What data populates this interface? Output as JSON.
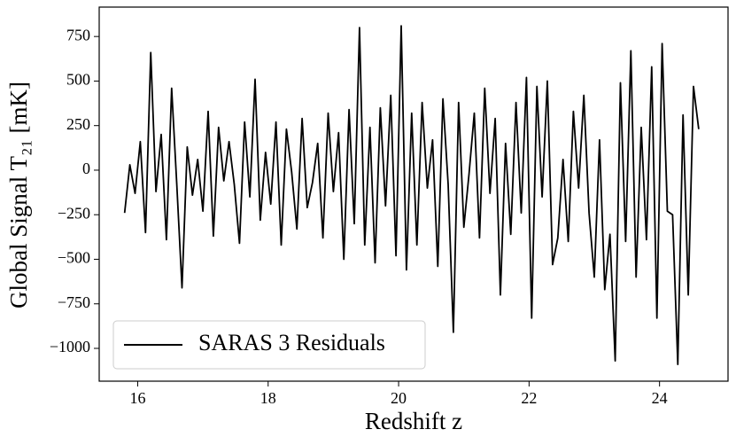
{
  "chart_data": {
    "type": "line",
    "xlabel": "Redshift z",
    "ylabel": "Global Signal T₂₁ [mK]",
    "xlim": [
      15.41,
      25.05
    ],
    "ylim": [
      -1184,
      915
    ],
    "xticks": [
      16,
      18,
      20,
      22,
      24
    ],
    "yticks": [
      {
        "value": -1000,
        "label": "−1000"
      },
      {
        "value": -750,
        "label": "−750"
      },
      {
        "value": -500,
        "label": "−500"
      },
      {
        "value": -250,
        "label": "−250"
      },
      0,
      250,
      500,
      750
    ],
    "legend": "lower left",
    "series": [
      {
        "name": "SARAS 3 Residuals",
        "color": "#000000",
        "x": [
          15.8,
          15.88,
          15.96,
          16.04,
          16.12,
          16.2,
          16.28,
          16.36,
          16.44,
          16.52,
          16.6,
          16.68,
          16.76,
          16.84,
          16.92,
          17.0,
          17.08,
          17.16,
          17.24,
          17.32,
          17.4,
          17.48,
          17.56,
          17.64,
          17.72,
          17.8,
          17.88,
          17.96,
          18.04,
          18.12,
          18.2,
          18.28,
          18.36,
          18.44,
          18.52,
          18.6,
          18.68,
          18.76,
          18.84,
          18.92,
          19.0,
          19.08,
          19.16,
          19.24,
          19.32,
          19.4,
          19.48,
          19.56,
          19.64,
          19.72,
          19.8,
          19.88,
          19.96,
          20.04,
          20.12,
          20.2,
          20.28,
          20.36,
          20.44,
          20.52,
          20.6,
          20.68,
          20.76,
          20.84,
          20.92,
          21.0,
          21.08,
          21.16,
          21.24,
          21.32,
          21.4,
          21.48,
          21.56,
          21.64,
          21.72,
          21.8,
          21.88,
          21.96,
          22.04,
          22.12,
          22.2,
          22.28,
          22.36,
          22.44,
          22.52,
          22.6,
          22.68,
          22.76,
          22.84,
          22.92,
          23.0,
          23.08,
          23.16,
          23.24,
          23.32,
          23.4,
          23.48,
          23.56,
          23.64,
          23.72,
          23.8,
          23.88,
          23.96,
          24.04,
          24.12,
          24.2,
          24.28,
          24.36,
          24.44,
          24.52,
          24.6
        ],
        "values": [
          -240,
          30,
          -130,
          160,
          -350,
          660,
          -120,
          200,
          -390,
          460,
          -80,
          -660,
          130,
          -140,
          60,
          -230,
          330,
          -370,
          240,
          -60,
          160,
          -80,
          -410,
          270,
          -150,
          510,
          -280,
          100,
          -190,
          270,
          -420,
          230,
          -10,
          -330,
          290,
          -210,
          -70,
          150,
          -380,
          320,
          -120,
          210,
          -500,
          340,
          -300,
          800,
          -420,
          240,
          -520,
          350,
          -200,
          420,
          -480,
          810,
          -560,
          320,
          -420,
          380,
          -100,
          170,
          -540,
          400,
          -80,
          -910,
          380,
          -320,
          -20,
          320,
          -380,
          460,
          -130,
          290,
          -700,
          150,
          -360,
          380,
          -240,
          520,
          -830,
          470,
          -150,
          500,
          -530,
          -380,
          60,
          -400,
          330,
          -100,
          420,
          -240,
          -600,
          170,
          -670,
          -360,
          -1070,
          490,
          -400,
          670,
          -600,
          240,
          -390,
          580,
          -830,
          710,
          -230,
          -250,
          -1090,
          310,
          -700,
          470,
          230
        ]
      }
    ]
  }
}
